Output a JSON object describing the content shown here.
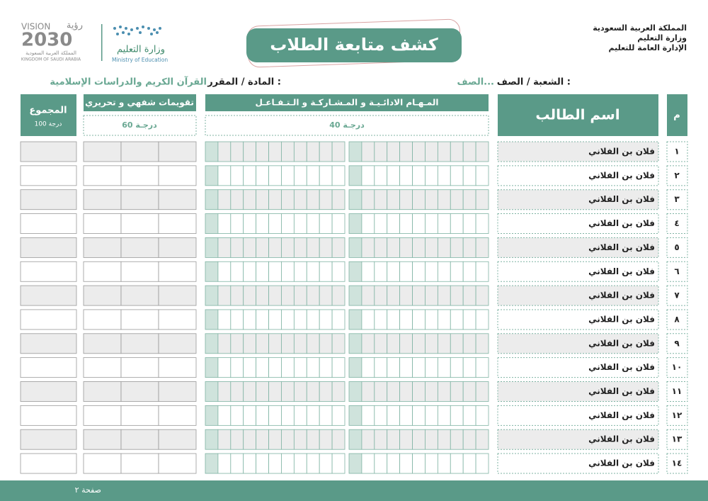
{
  "header": {
    "country": "المملكة العربية السعودية",
    "ministry": "وزارة التعليم",
    "directorate": "الإدارة العامة للتعليم",
    "title": "كشف متابعة الطلاب"
  },
  "logos": {
    "vision_en": "VISION",
    "vision_ar": "رؤية",
    "vision_year": "2030",
    "kingdom_ar": "المملكة العربية السعودية",
    "kingdom_en": "KINGDOM OF SAUDI ARABIA",
    "moe_ar": "وزارة التعليم",
    "moe_en": "Ministry of Education"
  },
  "info": {
    "class_label": "الشعبة / الصف :",
    "class_value": "الصف...",
    "subject_label": "المادة / المقرر :",
    "subject_value": "القرآن الكريم والدراسات الإسلامية"
  },
  "table": {
    "columns": {
      "number": "م",
      "name": "اسم الطالب",
      "tasks": "المـهـام الادائـيـة و المـشـاركـة و الـتـفـاعـل",
      "tasks_grade": "40 درجـة",
      "oral": "تقويمات شفهي و تحريري",
      "oral_grade": "60 درجـة",
      "total": "المجموع",
      "total_grade": "100 درجة"
    },
    "rows": [
      {
        "number": "١",
        "name": "فلان بن الفلاني"
      },
      {
        "number": "٢",
        "name": "فلان بن الفلاني"
      },
      {
        "number": "٣",
        "name": "فلان بن الفلاني"
      },
      {
        "number": "٤",
        "name": "فلان بن الفلاني"
      },
      {
        "number": "٥",
        "name": "فلان بن الفلاني"
      },
      {
        "number": "٦",
        "name": "فلان بن الفلاني"
      },
      {
        "number": "٧",
        "name": "فلان بن الفلاني"
      },
      {
        "number": "٨",
        "name": "فلان بن الفلاني"
      },
      {
        "number": "٩",
        "name": "فلان بن الفلاني"
      },
      {
        "number": "١٠",
        "name": "فلان بن الفلاني"
      },
      {
        "number": "١١",
        "name": "فلان بن الفلاني"
      },
      {
        "number": "١٢",
        "name": "فلان بن الفلاني"
      },
      {
        "number": "١٣",
        "name": "فلان بن الفلاني"
      },
      {
        "number": "١٤",
        "name": "فلان بن الفلاني"
      }
    ]
  },
  "footer": {
    "page": "صفحة ٢"
  }
}
